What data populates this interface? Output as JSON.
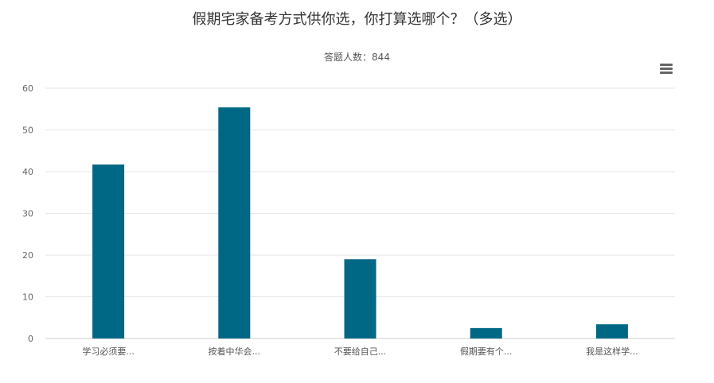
{
  "chart_data": {
    "type": "bar",
    "title": "假期宅家备考方式供你选，你打算选哪个？（多选）",
    "subtitle": "答题人数：844",
    "categories": [
      "学习必须要...",
      "按着中华会...",
      "不要给自己...",
      "假期要有个...",
      "我是这样学..."
    ],
    "values": [
      41.7,
      55.4,
      19.0,
      2.5,
      3.4
    ],
    "ylim": [
      0,
      60
    ],
    "yticks": [
      0,
      10,
      20,
      30,
      40,
      50,
      60
    ],
    "grid": true,
    "bar_color": "#006784"
  },
  "menu": {
    "icon": "hamburger-menu-icon"
  }
}
